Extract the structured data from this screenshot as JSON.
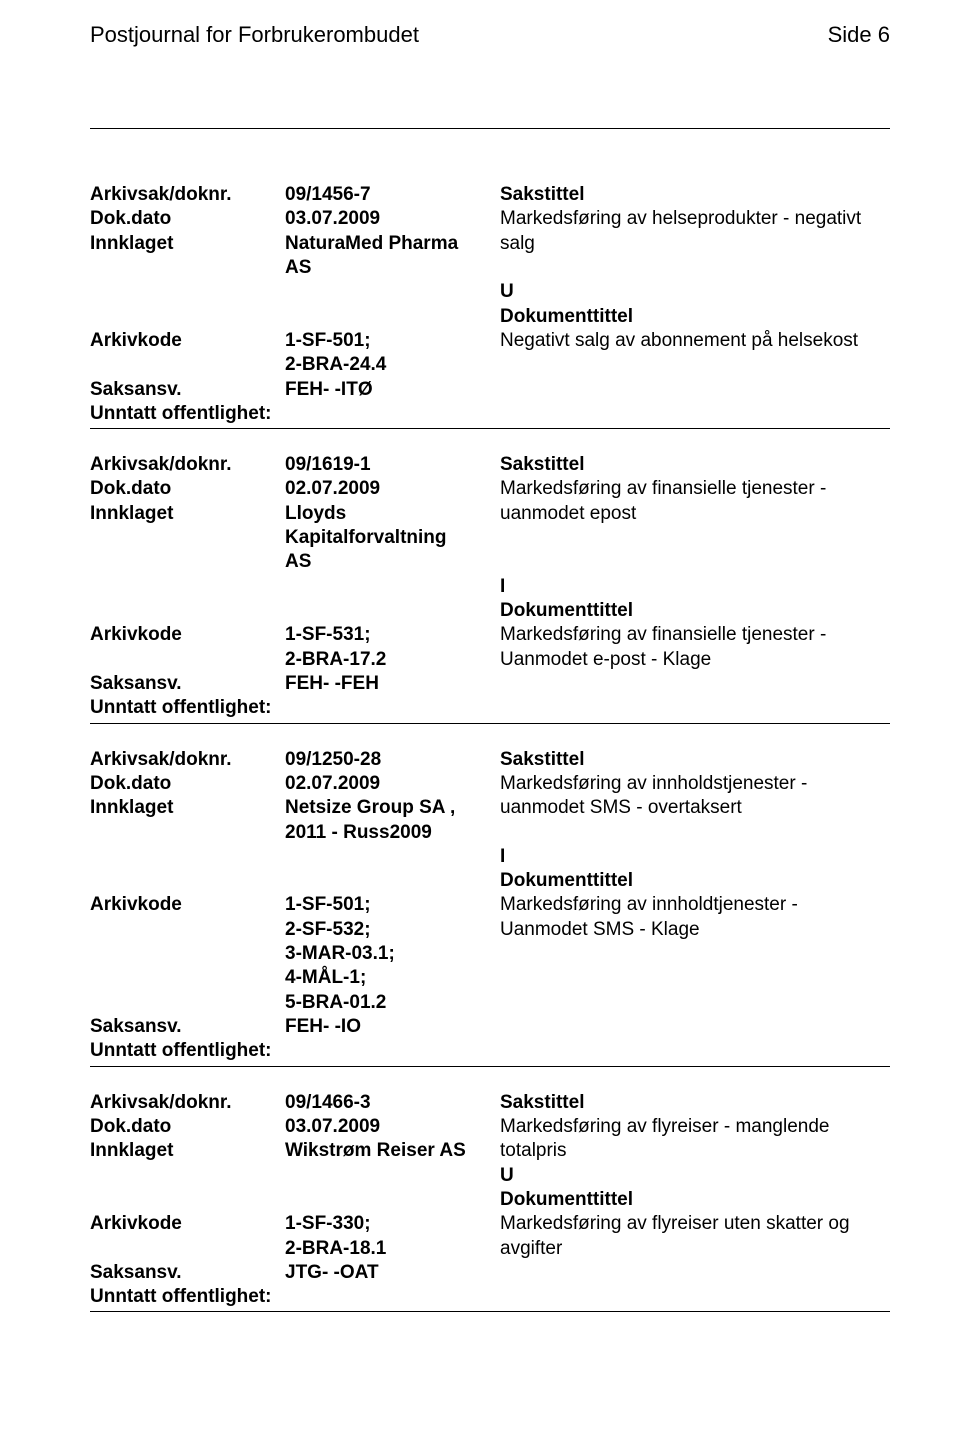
{
  "header": {
    "title": "Postjournal for Forbrukerombudet",
    "page_label": "Side 6"
  },
  "labels": {
    "arkivsak": "Arkivsak/doknr.",
    "dokdato": "Dok.dato",
    "innklaget": "Innklaget",
    "arkivkode": "Arkivkode",
    "saksansv": "Saksansv.",
    "unntatt": "Unntatt offentlighet:",
    "sakstittel": "Sakstittel",
    "dokumenttittel": "Dokumenttittel"
  },
  "entries": [
    {
      "doknr": "09/1456-7",
      "dokdato": "03.07.2009",
      "sakstittel": "Markedsføring av helseprodukter - negativt salg",
      "innklaget": "NaturaMed Pharma AS",
      "io_code": "U",
      "arkivkode": "1-SF-501; 2-BRA-24.4",
      "dokumenttittel": "Negativt salg av abonnement på helsekost",
      "saksansv": "FEH- -ITØ"
    },
    {
      "doknr": "09/1619-1",
      "dokdato": "02.07.2009",
      "sakstittel": "Markedsføring av finansielle tjenester - uanmodet epost",
      "innklaget": "Lloyds Kapitalforvaltning AS",
      "io_code": "I",
      "arkivkode": "1-SF-531; 2-BRA-17.2",
      "dokumenttittel": "Markedsføring av finansielle tjenester - Uanmodet e-post - Klage",
      "saksansv": "FEH- -FEH"
    },
    {
      "doknr": "09/1250-28",
      "dokdato": "02.07.2009",
      "sakstittel": "Markedsføring av innholdstjenester - uanmodet SMS - overtaksert",
      "innklaget": "Netsize Group SA , 2011 - Russ2009",
      "io_code": "I",
      "arkivkode": "1-SF-501; 2-SF-532; 3-MAR-03.1; 4-MÅL-1; 5-BRA-01.2",
      "dokumenttittel": "Markedsføring av innholdtjenester - Uanmodet SMS - Klage",
      "saksansv": "FEH- -IO"
    },
    {
      "doknr": "09/1466-3",
      "dokdato": "03.07.2009",
      "sakstittel": "Markedsføring av flyreiser - manglende totalpris",
      "innklaget": "Wikstrøm Reiser AS",
      "io_code": "U",
      "arkivkode": "1-SF-330; 2-BRA-18.1",
      "dokumenttittel": "Markedsføring av flyreiser uten skatter og avgifter",
      "saksansv": "JTG- -OAT"
    }
  ]
}
